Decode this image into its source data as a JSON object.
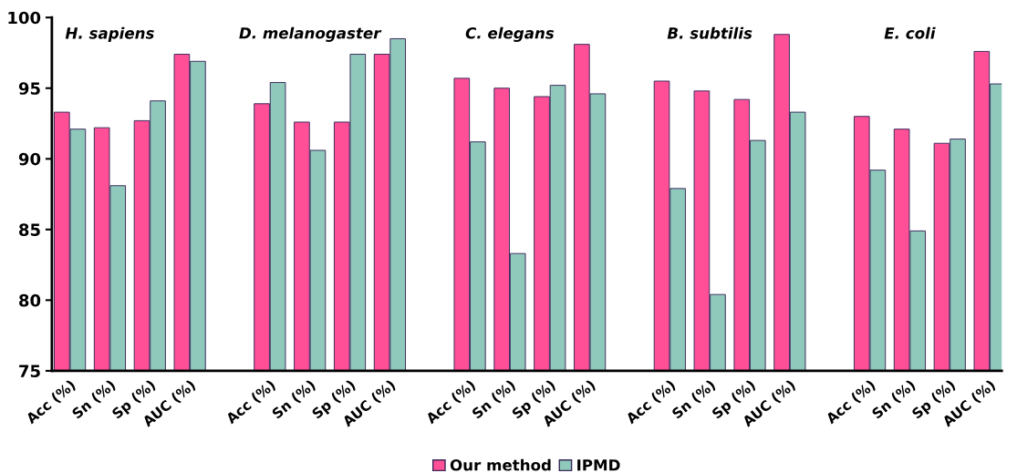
{
  "chart_data": {
    "type": "bar",
    "categories": [
      "Acc (%)",
      "Sn (%)",
      "Sp (%)",
      "AUC (%)",
      null,
      "Acc (%)",
      "Sn (%)",
      "Sp (%)",
      "AUC (%)",
      null,
      "Acc (%)",
      "Sn (%)",
      "Sp (%)",
      "AUC (%)",
      null,
      "Acc (%)",
      "Sn (%)",
      "Sp (%)",
      "AUC (%)",
      null,
      "Acc (%)",
      "Sn (%)",
      "Sp (%)",
      "AUC (%)"
    ],
    "series": [
      {
        "name": "Our method",
        "color": "#ff4f97",
        "values": [
          93.3,
          92.2,
          92.7,
          97.4,
          null,
          93.9,
          92.6,
          92.6,
          97.4,
          null,
          95.7,
          95.0,
          94.4,
          98.1,
          null,
          95.5,
          94.8,
          94.2,
          98.8,
          null,
          93.0,
          92.1,
          91.1,
          97.6
        ]
      },
      {
        "name": "IPMD",
        "color": "#8fc9bc",
        "values": [
          92.1,
          88.1,
          94.1,
          96.9,
          null,
          95.4,
          90.6,
          97.4,
          98.5,
          null,
          91.2,
          83.3,
          95.2,
          94.6,
          null,
          87.9,
          80.4,
          91.3,
          93.3,
          null,
          89.2,
          84.9,
          91.4,
          95.3
        ]
      }
    ],
    "annotations": [
      "H. sapiens",
      "D. melanogaster",
      "C. elegans",
      "B. subtilis",
      "E. coli"
    ],
    "ylim": [
      75,
      100
    ],
    "yticks": [
      75,
      80,
      85,
      90,
      95,
      100
    ],
    "grid": false,
    "legend": "bottom"
  }
}
